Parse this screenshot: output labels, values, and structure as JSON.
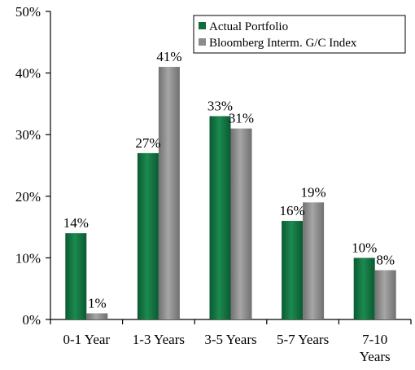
{
  "chart_data": {
    "type": "bar",
    "title": "",
    "xlabel": "",
    "ylabel": "",
    "categories": [
      [
        "0-1 Year"
      ],
      [
        "1-3 Years"
      ],
      [
        "3-5 Years"
      ],
      [
        "5-7 Years"
      ],
      [
        "7-10",
        "Years"
      ]
    ],
    "series": [
      {
        "name": "Actual Portfolio",
        "values": [
          14,
          27,
          33,
          16,
          10
        ],
        "labels": [
          "14%",
          "27%",
          "33%",
          "16%",
          "10%"
        ],
        "color": "#0f6b3c"
      },
      {
        "name": "Bloomberg Interm. G/C Index",
        "values": [
          1,
          41,
          31,
          19,
          8
        ],
        "labels": [
          "1%",
          "41%",
          "31%",
          "19%",
          "8%"
        ],
        "color": "#8c8c8c"
      }
    ],
    "ylim": [
      0,
      50
    ],
    "yticks": [
      0,
      10,
      20,
      30,
      40,
      50
    ],
    "ytick_labels": [
      "0%",
      "10%",
      "20%",
      "30%",
      "40%",
      "50%"
    ],
    "grid": false,
    "legend_position": "top-right"
  }
}
